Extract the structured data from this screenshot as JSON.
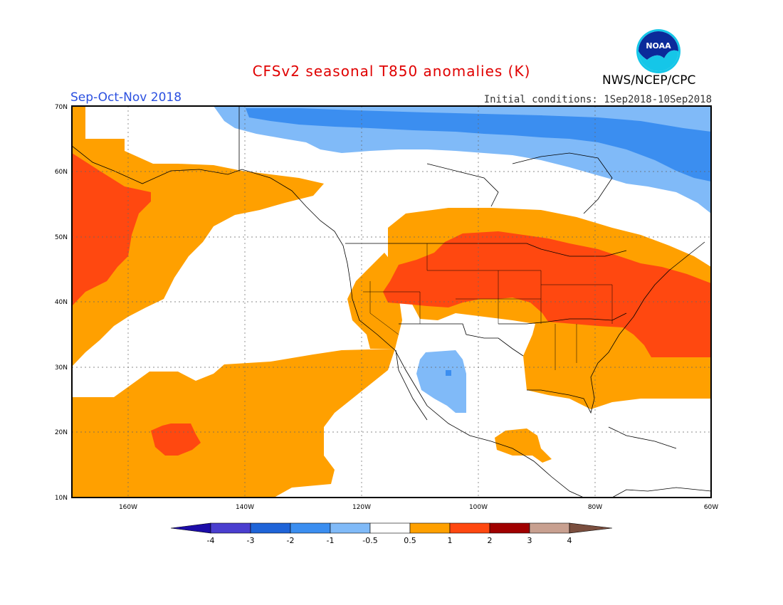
{
  "title": "CFSv2 seasonal T850 anomalies (K)",
  "season": "Sep-Oct-Nov 2018",
  "initial_conditions": "Initial conditions: 1Sep2018-10Sep2018",
  "agency": "NWS/NCEP/CPC",
  "logo_text": "NOAA",
  "map": {
    "lat_labels": [
      "70N",
      "60N",
      "50N",
      "40N",
      "30N",
      "20N",
      "10N"
    ],
    "lon_labels": [
      "160W",
      "140W",
      "120W",
      "100W",
      "80W",
      "60W"
    ]
  },
  "colorbar": {
    "labels": [
      "-4",
      "-3",
      "-2",
      "-1",
      "-0.5",
      "0.5",
      "1",
      "2",
      "3",
      "4"
    ],
    "colors": [
      "#1c0ca8",
      "#4a3ecf",
      "#1f64d8",
      "#3b8ef0",
      "#80baf8",
      "#ffffff",
      "#ffa000",
      "#ff4810",
      "#a00000",
      "#c8a090",
      "#7a4e3e"
    ]
  },
  "colors": {
    "warm1": "#ffa000",
    "warm2": "#ff4810",
    "cool1": "#80baf8",
    "cool2": "#3b8ef0",
    "cool3": "#1f64d8"
  }
}
